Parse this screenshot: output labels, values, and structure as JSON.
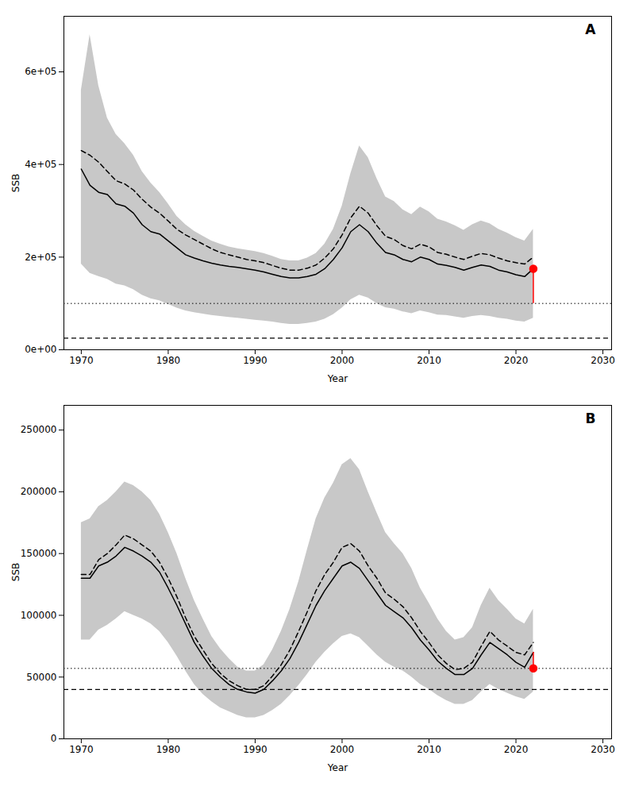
{
  "chart_data": [
    {
      "type": "line",
      "title": "A",
      "xlabel": "Year",
      "ylabel": "SSB",
      "grid": false,
      "x": [
        1970,
        1971,
        1972,
        1973,
        1974,
        1975,
        1976,
        1977,
        1978,
        1979,
        1980,
        1981,
        1982,
        1983,
        1984,
        1985,
        1986,
        1987,
        1988,
        1989,
        1990,
        1991,
        1992,
        1993,
        1994,
        1995,
        1996,
        1997,
        1998,
        1999,
        2000,
        2001,
        2002,
        2003,
        2004,
        2005,
        2006,
        2007,
        2008,
        2009,
        2010,
        2011,
        2012,
        2013,
        2014,
        2015,
        2016,
        2017,
        2018,
        2019,
        2020,
        2021,
        2022
      ],
      "series": [
        {
          "type": "band",
          "color": "#c8c8c8",
          "lower": [
            185000,
            165000,
            158000,
            152000,
            142000,
            138000,
            130000,
            118000,
            110000,
            106000,
            98000,
            90000,
            84000,
            80000,
            77000,
            74000,
            72000,
            70000,
            68000,
            66000,
            64000,
            62000,
            60000,
            57000,
            55000,
            55000,
            57000,
            60000,
            66000,
            76000,
            90000,
            108000,
            118000,
            112000,
            100000,
            91000,
            88000,
            82000,
            78000,
            84000,
            80000,
            75000,
            74000,
            71000,
            68000,
            72000,
            74000,
            72000,
            68000,
            66000,
            62000,
            60000,
            68000
          ],
          "upper": [
            560000,
            680000,
            570000,
            500000,
            465000,
            445000,
            420000,
            385000,
            360000,
            340000,
            315000,
            288000,
            270000,
            256000,
            245000,
            235000,
            228000,
            222000,
            218000,
            215000,
            212000,
            208000,
            202000,
            195000,
            192000,
            192000,
            198000,
            208000,
            228000,
            260000,
            310000,
            380000,
            440000,
            415000,
            370000,
            330000,
            320000,
            302000,
            292000,
            308000,
            298000,
            282000,
            276000,
            268000,
            258000,
            270000,
            278000,
            272000,
            260000,
            252000,
            242000,
            235000,
            260000
          ]
        },
        {
          "type": "line",
          "color": "#000000",
          "line_style": "solid",
          "values": [
            390000,
            355000,
            340000,
            335000,
            315000,
            310000,
            295000,
            270000,
            255000,
            250000,
            235000,
            220000,
            205000,
            198000,
            192000,
            187000,
            183000,
            180000,
            178000,
            175000,
            172000,
            168000,
            163000,
            158000,
            155000,
            155000,
            158000,
            163000,
            175000,
            195000,
            220000,
            255000,
            270000,
            255000,
            230000,
            210000,
            205000,
            195000,
            190000,
            200000,
            195000,
            185000,
            182000,
            178000,
            172000,
            178000,
            183000,
            180000,
            172000,
            168000,
            162000,
            158000,
            175000
          ]
        },
        {
          "type": "line",
          "color": "#000000",
          "line_style": "dashed",
          "values": [
            430000,
            420000,
            405000,
            385000,
            365000,
            358000,
            345000,
            325000,
            308000,
            295000,
            278000,
            260000,
            248000,
            238000,
            228000,
            218000,
            210000,
            205000,
            200000,
            195000,
            192000,
            188000,
            182000,
            176000,
            172000,
            172000,
            176000,
            183000,
            198000,
            218000,
            248000,
            285000,
            310000,
            295000,
            268000,
            245000,
            238000,
            225000,
            218000,
            228000,
            222000,
            210000,
            206000,
            200000,
            195000,
            202000,
            208000,
            205000,
            198000,
            192000,
            188000,
            185000,
            200000
          ]
        },
        {
          "type": "hline",
          "color": "#000000",
          "line_style": "dotted",
          "value": 100000
        },
        {
          "type": "hline",
          "color": "#000000",
          "line_style": "dashed",
          "value": 25000
        },
        {
          "type": "vsegment",
          "color": "#ff0000",
          "line_style": "solid",
          "x": 2022,
          "y_bottom": 100000,
          "y_top": 175000
        },
        {
          "type": "scatter",
          "color": "#ff0000",
          "marker": "circle",
          "x": [
            2022
          ],
          "values": [
            175000
          ]
        }
      ],
      "xlim": [
        1968,
        2031
      ],
      "xticks": [
        1970,
        1980,
        1990,
        2000,
        2010,
        2020,
        2030
      ],
      "ylim": [
        0,
        720000
      ],
      "yticks": [
        {
          "value": 0,
          "label": "0e+00"
        },
        {
          "value": 200000,
          "label": "2e+05"
        },
        {
          "value": 400000,
          "label": "4e+05"
        },
        {
          "value": 600000,
          "label": "6e+05"
        }
      ]
    },
    {
      "type": "line",
      "title": "B",
      "xlabel": "Year",
      "ylabel": "SSB",
      "grid": false,
      "x": [
        1970,
        1971,
        1972,
        1973,
        1974,
        1975,
        1976,
        1977,
        1978,
        1979,
        1980,
        1981,
        1982,
        1983,
        1984,
        1985,
        1986,
        1987,
        1988,
        1989,
        1990,
        1991,
        1992,
        1993,
        1994,
        1995,
        1996,
        1997,
        1998,
        1999,
        2000,
        2001,
        2002,
        2003,
        2004,
        2005,
        2006,
        2007,
        2008,
        2009,
        2010,
        2011,
        2012,
        2013,
        2014,
        2015,
        2016,
        2017,
        2018,
        2019,
        2020,
        2021,
        2022
      ],
      "series": [
        {
          "type": "band",
          "color": "#c8c8c8",
          "lower": [
            80000,
            80000,
            88000,
            92000,
            97000,
            103000,
            100000,
            97000,
            93000,
            87000,
            78000,
            67000,
            55000,
            44000,
            36000,
            30000,
            25000,
            22000,
            19000,
            17000,
            17000,
            19000,
            23000,
            28000,
            35000,
            43000,
            52000,
            62000,
            70000,
            77000,
            83000,
            85000,
            82000,
            75000,
            68000,
            62000,
            58000,
            55000,
            50000,
            44000,
            40000,
            35000,
            31000,
            28000,
            28000,
            31000,
            38000,
            44000,
            40000,
            37000,
            34000,
            32000,
            38000
          ],
          "upper": [
            175000,
            178000,
            188000,
            193000,
            200000,
            208000,
            205000,
            200000,
            193000,
            182000,
            167000,
            150000,
            130000,
            112000,
            97000,
            83000,
            73000,
            65000,
            58000,
            55000,
            55000,
            60000,
            72000,
            87000,
            105000,
            127000,
            153000,
            178000,
            195000,
            207000,
            222000,
            227000,
            218000,
            200000,
            183000,
            167000,
            158000,
            150000,
            138000,
            122000,
            110000,
            97000,
            87000,
            80000,
            82000,
            90000,
            108000,
            122000,
            112000,
            105000,
            97000,
            93000,
            105000
          ]
        },
        {
          "type": "line",
          "color": "#000000",
          "line_style": "solid",
          "values": [
            130000,
            130000,
            140000,
            143000,
            148000,
            155000,
            152000,
            148000,
            143000,
            135000,
            122000,
            108000,
            93000,
            78000,
            67000,
            57000,
            50000,
            44000,
            40000,
            38000,
            37000,
            40000,
            47000,
            55000,
            65000,
            78000,
            93000,
            108000,
            120000,
            130000,
            140000,
            143000,
            138000,
            128000,
            118000,
            108000,
            103000,
            98000,
            90000,
            80000,
            72000,
            63000,
            57000,
            52000,
            52000,
            57000,
            68000,
            78000,
            73000,
            68000,
            62000,
            58000,
            70000
          ]
        },
        {
          "type": "line",
          "color": "#000000",
          "line_style": "dashed",
          "values": [
            133000,
            133000,
            145000,
            150000,
            157000,
            165000,
            162000,
            157000,
            152000,
            143000,
            130000,
            115000,
            98000,
            83000,
            72000,
            61000,
            53000,
            47000,
            43000,
            40000,
            40000,
            43000,
            51000,
            60000,
            72000,
            87000,
            103000,
            120000,
            133000,
            143000,
            155000,
            158000,
            152000,
            140000,
            130000,
            118000,
            113000,
            107000,
            98000,
            87000,
            78000,
            68000,
            61000,
            56000,
            57000,
            62000,
            75000,
            87000,
            80000,
            75000,
            70000,
            68000,
            78000
          ]
        },
        {
          "type": "hline",
          "color": "#000000",
          "line_style": "dotted",
          "value": 57000
        },
        {
          "type": "hline",
          "color": "#000000",
          "line_style": "dashed",
          "value": 40000
        },
        {
          "type": "vsegment",
          "color": "#ff0000",
          "line_style": "solid",
          "x": 2022,
          "y_bottom": 57000,
          "y_top": 70000
        },
        {
          "type": "scatter",
          "color": "#ff0000",
          "marker": "circle",
          "x": [
            2022
          ],
          "values": [
            57000
          ]
        }
      ],
      "xlim": [
        1968,
        2031
      ],
      "xticks": [
        1970,
        1980,
        1990,
        2000,
        2010,
        2020,
        2030
      ],
      "ylim": [
        0,
        270000
      ],
      "yticks": [
        0,
        50000,
        100000,
        150000,
        200000,
        250000
      ]
    }
  ]
}
